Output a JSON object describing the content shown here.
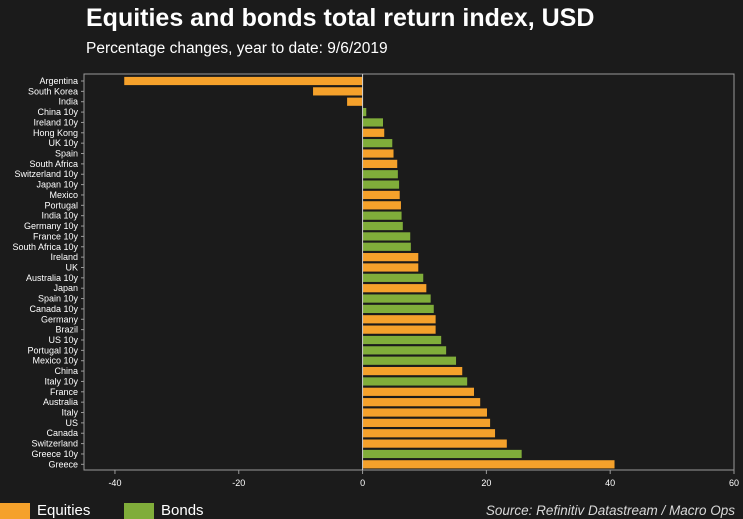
{
  "header": {
    "title": "Equities and bonds total return index, USD",
    "subtitle": "Percentage changes, year to date: 9/6/2019"
  },
  "legend": {
    "items": [
      {
        "label": "Equities",
        "color": "#f5a12b"
      },
      {
        "label": "Bonds",
        "color": "#80ad3a"
      }
    ]
  },
  "source": "Source: Refinitiv Datastream / Macro Ops",
  "chart_data": {
    "type": "bar",
    "orientation": "horizontal",
    "title": "Equities and bonds total return index, USD",
    "subtitle": "Percentage changes, year to date: 9/6/2019",
    "xlim": [
      -45,
      60
    ],
    "xticks": [
      -40,
      -20,
      0,
      20,
      40,
      60
    ],
    "grid": false,
    "legend_position": "bottom-left",
    "categories": [
      "Argentina",
      "South Korea",
      "India",
      "China 10y",
      "Ireland 10y",
      "Hong Kong",
      "UK 10y",
      "Spain",
      "South Africa",
      "Switzerland 10y",
      "Japan 10y",
      "Mexico",
      "Portugal",
      "India 10y",
      "Germany 10y",
      "France 10y",
      "South Africa 10y",
      "Ireland",
      "UK",
      "Australia 10y",
      "Japan",
      "Spain 10y",
      "Canada 10y",
      "Germany",
      "Brazil",
      "US 10y",
      "Portugal 10y",
      "Mexico 10y",
      "China",
      "Italy 10y",
      "France",
      "Australia",
      "Italy",
      "US",
      "Canada",
      "Switzerland",
      "Greece 10y",
      "Greece"
    ],
    "values": [
      -38.5,
      -8,
      -2.5,
      0.6,
      3.3,
      3.5,
      4.8,
      5,
      5.6,
      5.7,
      5.9,
      6,
      6.2,
      6.3,
      6.5,
      7.7,
      7.8,
      9,
      9,
      9.8,
      10.3,
      11,
      11.5,
      11.8,
      11.8,
      12.7,
      13.5,
      15.1,
      16.1,
      16.9,
      18,
      19,
      20.1,
      20.6,
      21.4,
      23.3,
      25.7,
      40.7
    ],
    "types": [
      "Equities",
      "Equities",
      "Equities",
      "Bonds",
      "Bonds",
      "Equities",
      "Bonds",
      "Equities",
      "Equities",
      "Bonds",
      "Bonds",
      "Equities",
      "Equities",
      "Bonds",
      "Bonds",
      "Bonds",
      "Bonds",
      "Equities",
      "Equities",
      "Bonds",
      "Equities",
      "Bonds",
      "Bonds",
      "Equities",
      "Equities",
      "Bonds",
      "Bonds",
      "Bonds",
      "Equities",
      "Bonds",
      "Equities",
      "Equities",
      "Equities",
      "Equities",
      "Equities",
      "Equities",
      "Bonds",
      "Equities"
    ]
  }
}
